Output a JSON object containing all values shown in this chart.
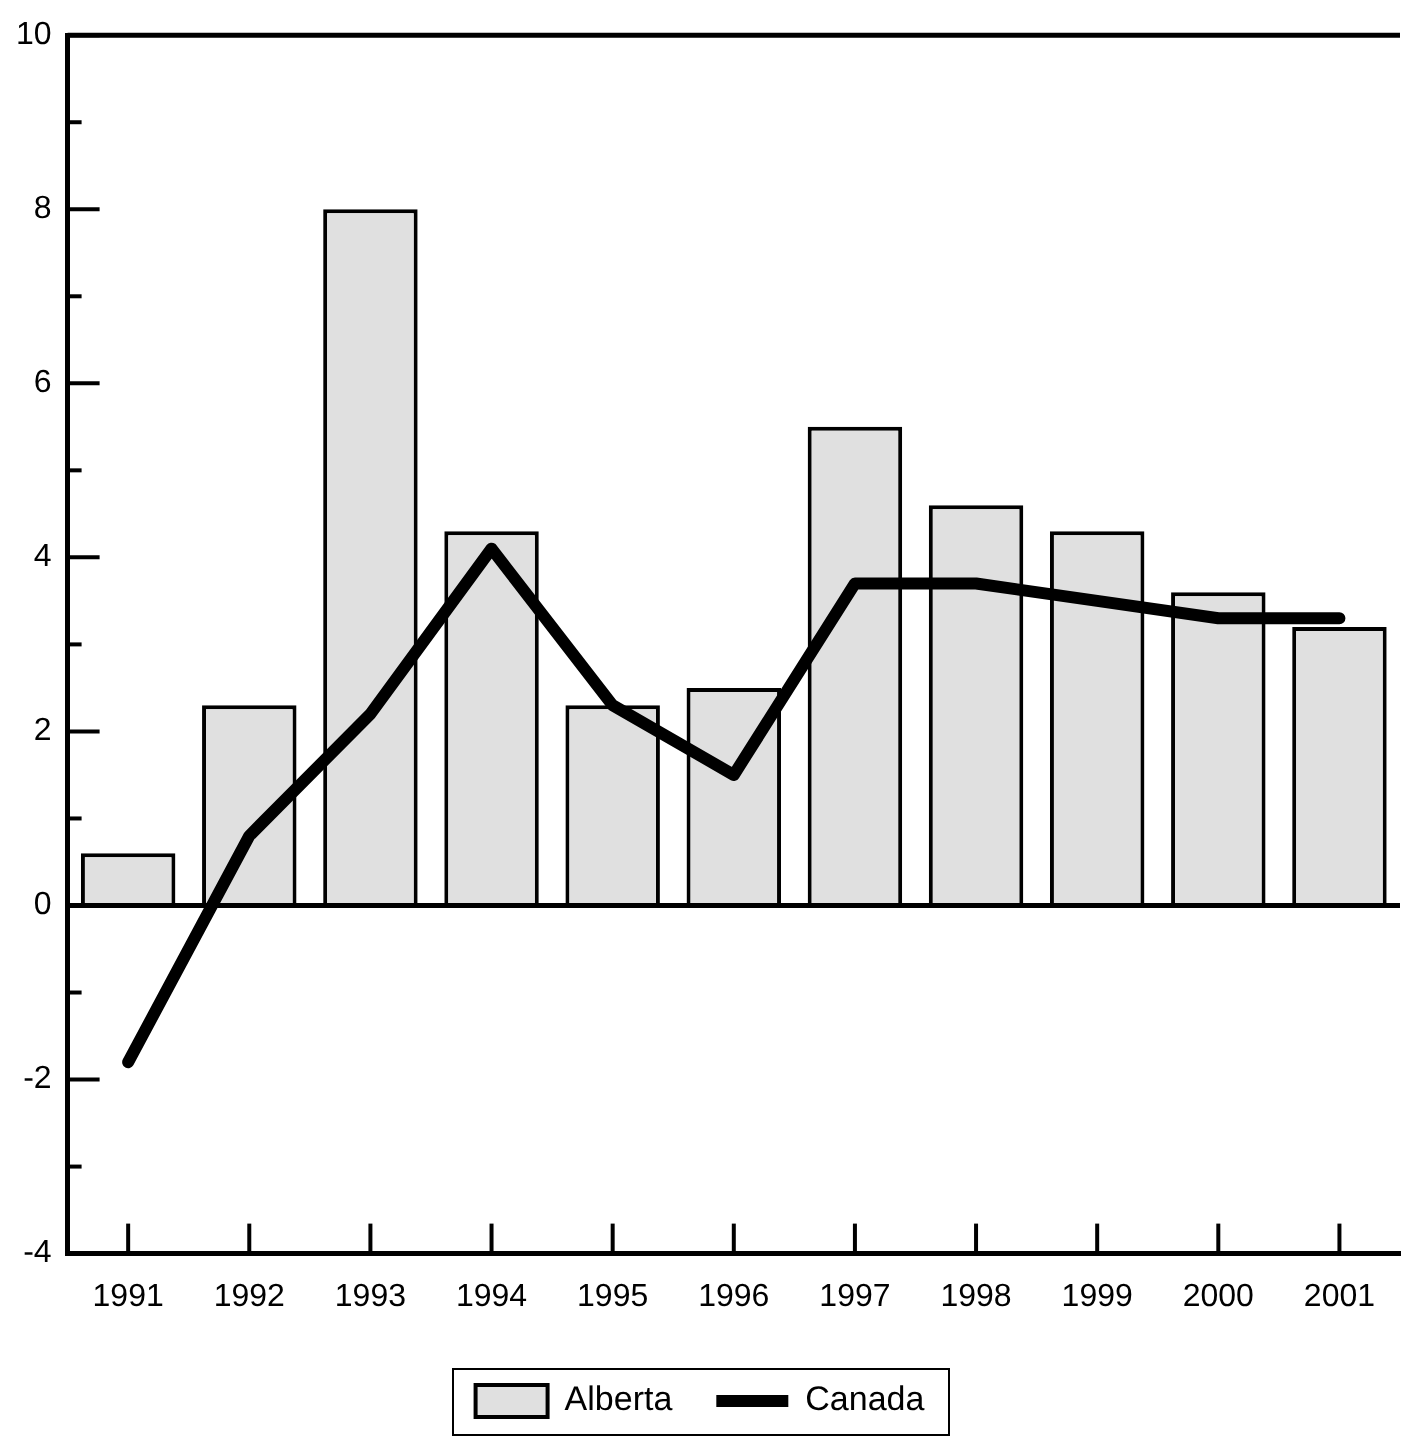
{
  "chart_data": {
    "type": "bar",
    "categories": [
      "1991",
      "1992",
      "1993",
      "1994",
      "1995",
      "1996",
      "1997",
      "1998",
      "1999",
      "2000",
      "2001"
    ],
    "series": [
      {
        "name": "Alberta",
        "color": "#e0e0e0",
        "values": [
          0.6,
          2.3,
          8.0,
          4.3,
          2.3,
          2.5,
          5.5,
          4.6,
          4.3,
          3.6,
          3.2
        ]
      },
      {
        "name": "Canada",
        "type": "line",
        "color": "#000000",
        "values": [
          -1.8,
          0.8,
          2.2,
          4.1,
          2.3,
          1.5,
          3.7,
          3.7,
          3.5,
          3.3,
          3.3
        ]
      }
    ],
    "ylim": [
      -4,
      10
    ],
    "yticks": [
      -4,
      {
        "value": -3,
        "label": null
      },
      -2,
      {
        "value": -1,
        "label": null
      },
      0,
      {
        "value": 1,
        "label": null
      },
      2,
      {
        "value": 3,
        "label": null
      },
      4,
      {
        "value": 5,
        "label": null
      },
      6,
      {
        "value": 7,
        "label": null
      },
      8,
      {
        "value": 9,
        "label": null
      },
      10
    ],
    "ref_lines": [
      {
        "axis": "y",
        "value": 0,
        "color": "#000000"
      }
    ],
    "grid": false,
    "legend": "bottom",
    "marker": "none",
    "line_style": "solid"
  }
}
